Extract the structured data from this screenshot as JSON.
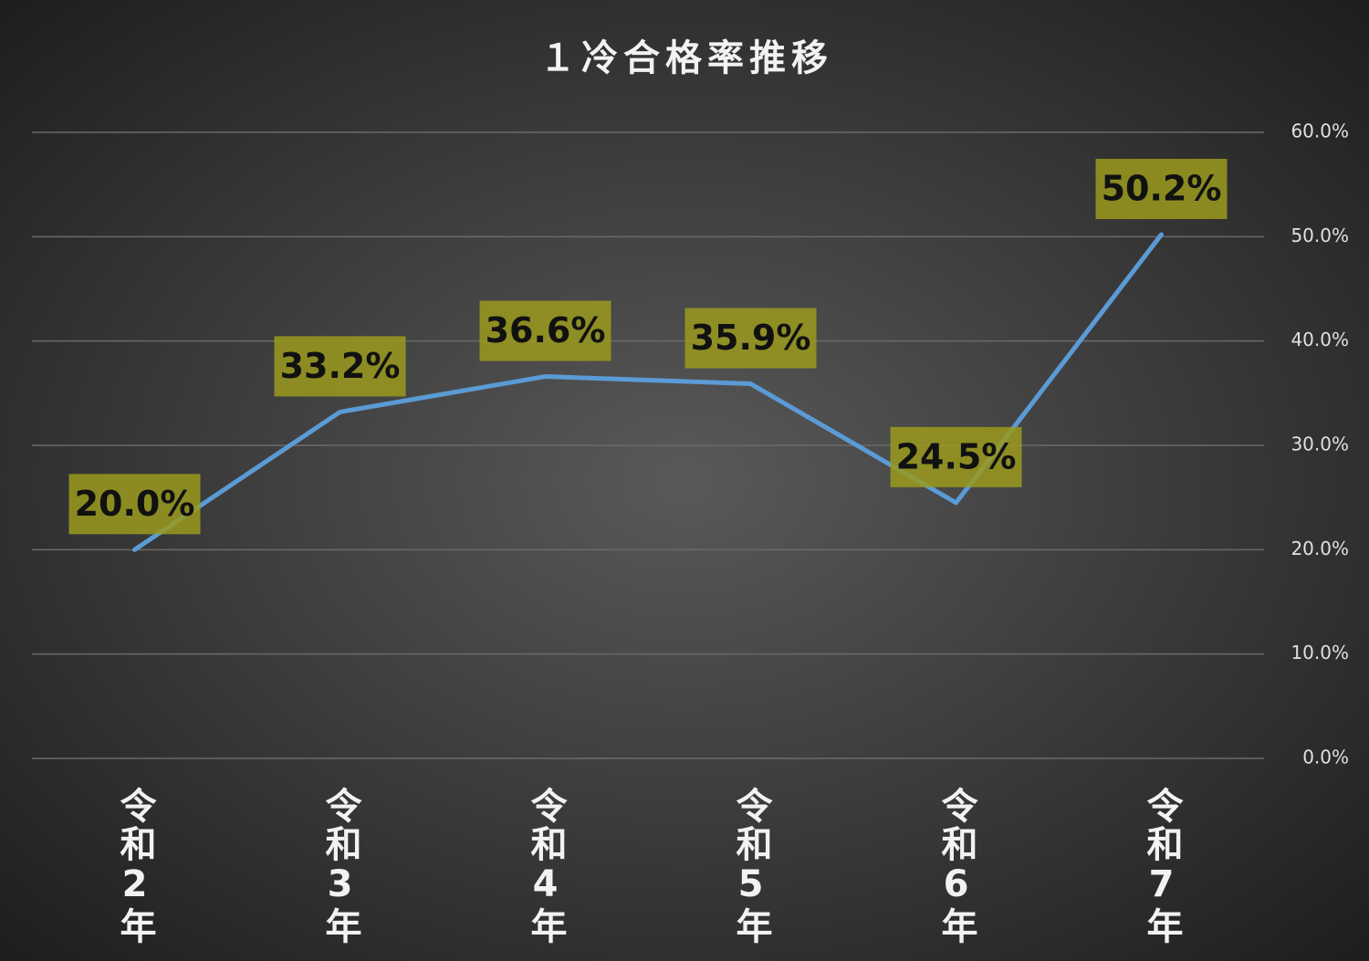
{
  "chart_data": {
    "type": "line",
    "title": "１冷合格率推移",
    "categories": [
      "令和2年",
      "令和3年",
      "令和4年",
      "令和5年",
      "令和6年",
      "令和7年"
    ],
    "values": [
      20.0,
      33.2,
      36.6,
      35.9,
      24.5,
      50.2
    ],
    "value_labels": [
      "20.0%",
      "33.2%",
      "36.6%",
      "35.9%",
      "24.5%",
      "50.2%"
    ],
    "color": "#5b9bd5",
    "label_box_color": "#9a9a1e",
    "ylim": [
      0,
      60
    ],
    "yticks": [
      {
        "value": 0,
        "label": "0.0%"
      },
      {
        "value": 10,
        "label": "10.0%"
      },
      {
        "value": 20,
        "label": "20.0%"
      },
      {
        "value": 30,
        "label": "30.0%"
      },
      {
        "value": 40,
        "label": "40.0%"
      },
      {
        "value": 50,
        "label": "50.0%"
      },
      {
        "value": 60,
        "label": "60.0%"
      }
    ],
    "y_axis_side": "right",
    "grid": true
  }
}
